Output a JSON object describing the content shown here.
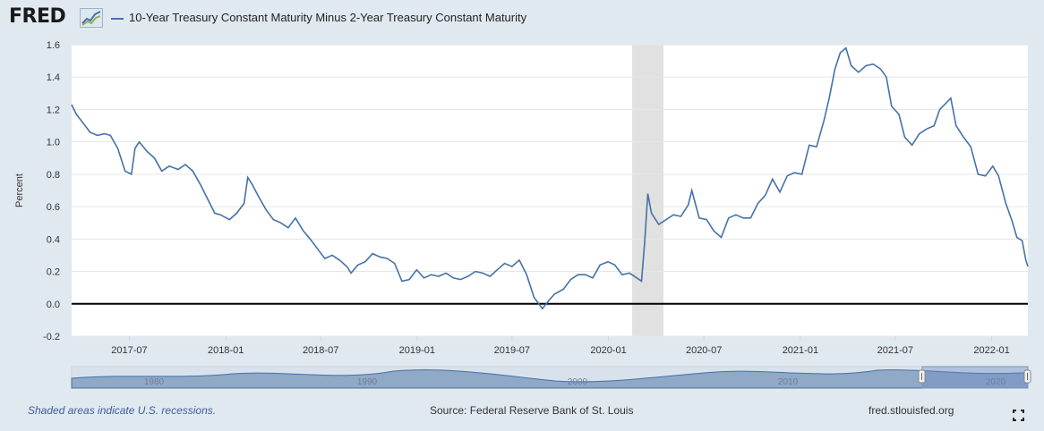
{
  "header": {
    "logo_text": "FRED",
    "legend_label": "10-Year Treasury Constant Maturity Minus 2-Year Treasury Constant Maturity",
    "series_color": "#4572a7"
  },
  "chart_data": {
    "type": "line",
    "ylabel": "Percent",
    "ylim": [
      -0.2,
      1.6
    ],
    "xlim": [
      "2017-03-13",
      "2022-03-11"
    ],
    "yticks": [
      "-0.2",
      "0.0",
      "0.2",
      "0.4",
      "0.6",
      "0.8",
      "1.0",
      "1.2",
      "1.4",
      "1.6"
    ],
    "xticks": [
      "2017-07",
      "2018-01",
      "2018-07",
      "2019-01",
      "2019-07",
      "2020-01",
      "2020-07",
      "2021-01",
      "2021-07",
      "2022-01"
    ],
    "grid": "horizontal",
    "zero_line": true,
    "recession_shading": [
      {
        "start": "2020-02-15",
        "end": "2020-04-15"
      }
    ],
    "series": [
      {
        "name": "10-Year Treasury Constant Maturity Minus 2-Year Treasury Constant Maturity",
        "color": "#4572a7",
        "points": [
          [
            "2017-03-13",
            1.23
          ],
          [
            "2017-03-22",
            1.17
          ],
          [
            "2017-04-03",
            1.12
          ],
          [
            "2017-04-17",
            1.06
          ],
          [
            "2017-05-01",
            1.04
          ],
          [
            "2017-05-15",
            1.05
          ],
          [
            "2017-05-26",
            1.04
          ],
          [
            "2017-06-09",
            0.96
          ],
          [
            "2017-06-23",
            0.82
          ],
          [
            "2017-07-05",
            0.8
          ],
          [
            "2017-07-12",
            0.96
          ],
          [
            "2017-07-20",
            1.0
          ],
          [
            "2017-08-04",
            0.94
          ],
          [
            "2017-08-18",
            0.9
          ],
          [
            "2017-09-01",
            0.82
          ],
          [
            "2017-09-15",
            0.85
          ],
          [
            "2017-10-02",
            0.83
          ],
          [
            "2017-10-16",
            0.86
          ],
          [
            "2017-10-30",
            0.82
          ],
          [
            "2017-11-13",
            0.74
          ],
          [
            "2017-11-27",
            0.65
          ],
          [
            "2017-12-11",
            0.56
          ],
          [
            "2017-12-22",
            0.55
          ],
          [
            "2018-01-08",
            0.52
          ],
          [
            "2018-01-22",
            0.56
          ],
          [
            "2018-02-05",
            0.62
          ],
          [
            "2018-02-12",
            0.78
          ],
          [
            "2018-02-20",
            0.74
          ],
          [
            "2018-03-05",
            0.66
          ],
          [
            "2018-03-19",
            0.58
          ],
          [
            "2018-04-02",
            0.52
          ],
          [
            "2018-04-16",
            0.5
          ],
          [
            "2018-04-30",
            0.47
          ],
          [
            "2018-05-14",
            0.53
          ],
          [
            "2018-05-29",
            0.45
          ],
          [
            "2018-06-11",
            0.4
          ],
          [
            "2018-06-25",
            0.34
          ],
          [
            "2018-07-09",
            0.28
          ],
          [
            "2018-07-23",
            0.3
          ],
          [
            "2018-08-06",
            0.27
          ],
          [
            "2018-08-20",
            0.23
          ],
          [
            "2018-08-28",
            0.19
          ],
          [
            "2018-09-10",
            0.24
          ],
          [
            "2018-09-24",
            0.26
          ],
          [
            "2018-10-08",
            0.31
          ],
          [
            "2018-10-22",
            0.29
          ],
          [
            "2018-11-05",
            0.28
          ],
          [
            "2018-11-19",
            0.25
          ],
          [
            "2018-12-03",
            0.14
          ],
          [
            "2018-12-17",
            0.15
          ],
          [
            "2018-12-31",
            0.21
          ],
          [
            "2019-01-14",
            0.16
          ],
          [
            "2019-01-28",
            0.18
          ],
          [
            "2019-02-11",
            0.17
          ],
          [
            "2019-02-25",
            0.19
          ],
          [
            "2019-03-11",
            0.16
          ],
          [
            "2019-03-25",
            0.15
          ],
          [
            "2019-04-08",
            0.17
          ],
          [
            "2019-04-22",
            0.2
          ],
          [
            "2019-05-06",
            0.19
          ],
          [
            "2019-05-20",
            0.17
          ],
          [
            "2019-06-03",
            0.21
          ],
          [
            "2019-06-17",
            0.25
          ],
          [
            "2019-07-01",
            0.23
          ],
          [
            "2019-07-15",
            0.27
          ],
          [
            "2019-07-29",
            0.18
          ],
          [
            "2019-08-12",
            0.04
          ],
          [
            "2019-08-28",
            -0.03
          ],
          [
            "2019-09-09",
            0.02
          ],
          [
            "2019-09-20",
            0.06
          ],
          [
            "2019-10-07",
            0.09
          ],
          [
            "2019-10-21",
            0.15
          ],
          [
            "2019-11-04",
            0.18
          ],
          [
            "2019-11-18",
            0.18
          ],
          [
            "2019-12-02",
            0.16
          ],
          [
            "2019-12-16",
            0.24
          ],
          [
            "2019-12-31",
            0.26
          ],
          [
            "2020-01-13",
            0.24
          ],
          [
            "2020-01-27",
            0.18
          ],
          [
            "2020-02-10",
            0.19
          ],
          [
            "2020-02-24",
            0.16
          ],
          [
            "2020-03-04",
            0.14
          ],
          [
            "2020-03-10",
            0.38
          ],
          [
            "2020-03-16",
            0.68
          ],
          [
            "2020-03-23",
            0.56
          ],
          [
            "2020-04-06",
            0.49
          ],
          [
            "2020-04-20",
            0.52
          ],
          [
            "2020-05-04",
            0.55
          ],
          [
            "2020-05-18",
            0.54
          ],
          [
            "2020-06-01",
            0.61
          ],
          [
            "2020-06-08",
            0.7
          ],
          [
            "2020-06-22",
            0.53
          ],
          [
            "2020-07-06",
            0.52
          ],
          [
            "2020-07-20",
            0.45
          ],
          [
            "2020-08-03",
            0.41
          ],
          [
            "2020-08-17",
            0.53
          ],
          [
            "2020-08-31",
            0.55
          ],
          [
            "2020-09-14",
            0.53
          ],
          [
            "2020-09-28",
            0.53
          ],
          [
            "2020-10-12",
            0.62
          ],
          [
            "2020-10-26",
            0.67
          ],
          [
            "2020-11-09",
            0.77
          ],
          [
            "2020-11-23",
            0.69
          ],
          [
            "2020-12-07",
            0.79
          ],
          [
            "2020-12-21",
            0.81
          ],
          [
            "2021-01-04",
            0.8
          ],
          [
            "2021-01-18",
            0.98
          ],
          [
            "2021-02-01",
            0.97
          ],
          [
            "2021-02-15",
            1.13
          ],
          [
            "2021-02-25",
            1.27
          ],
          [
            "2021-03-08",
            1.45
          ],
          [
            "2021-03-18",
            1.55
          ],
          [
            "2021-03-29",
            1.58
          ],
          [
            "2021-04-08",
            1.47
          ],
          [
            "2021-04-22",
            1.43
          ],
          [
            "2021-05-06",
            1.47
          ],
          [
            "2021-05-20",
            1.48
          ],
          [
            "2021-06-03",
            1.45
          ],
          [
            "2021-06-14",
            1.4
          ],
          [
            "2021-06-24",
            1.22
          ],
          [
            "2021-07-08",
            1.17
          ],
          [
            "2021-07-19",
            1.03
          ],
          [
            "2021-08-02",
            0.98
          ],
          [
            "2021-08-16",
            1.05
          ],
          [
            "2021-08-30",
            1.08
          ],
          [
            "2021-09-13",
            1.1
          ],
          [
            "2021-09-24",
            1.2
          ],
          [
            "2021-10-06",
            1.24
          ],
          [
            "2021-10-15",
            1.27
          ],
          [
            "2021-10-25",
            1.1
          ],
          [
            "2021-11-08",
            1.03
          ],
          [
            "2021-11-22",
            0.97
          ],
          [
            "2021-12-06",
            0.8
          ],
          [
            "2021-12-20",
            0.79
          ],
          [
            "2022-01-03",
            0.85
          ],
          [
            "2022-01-14",
            0.79
          ],
          [
            "2022-01-28",
            0.62
          ],
          [
            "2022-02-09",
            0.51
          ],
          [
            "2022-02-18",
            0.41
          ],
          [
            "2022-02-28",
            0.39
          ],
          [
            "2022-03-07",
            0.27
          ],
          [
            "2022-03-11",
            0.23
          ]
        ]
      }
    ]
  },
  "navigator": {
    "labels": [
      "1980",
      "1990",
      "2000",
      "2010",
      "2020"
    ]
  },
  "footer": {
    "note": "Shaded areas indicate U.S. recessions.",
    "source": "Source: Federal Reserve Bank of St. Louis",
    "url": "fred.stlouisfed.org"
  }
}
